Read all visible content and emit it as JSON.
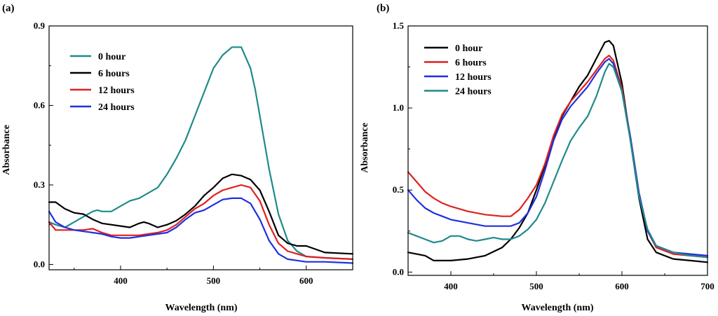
{
  "chart_data": [
    {
      "type": "line",
      "panel_label": "(a)",
      "xlabel": "Wavelength (nm)",
      "ylabel": "Absorbance",
      "xlim": [
        323,
        650
      ],
      "ylim": [
        -0.02,
        0.9
      ],
      "xticks": [
        400,
        500,
        600
      ],
      "yticks": [
        0.0,
        0.3,
        0.6,
        0.9
      ],
      "ytick_labels": [
        "0.0",
        "0.3",
        "0.6",
        "0.9"
      ],
      "legend_position": "top-left",
      "series": [
        {
          "name": "0 hour",
          "color": "#1f8a8a",
          "x": [
            323,
            330,
            340,
            350,
            360,
            370,
            375,
            380,
            390,
            400,
            410,
            420,
            430,
            440,
            450,
            460,
            470,
            480,
            490,
            500,
            510,
            520,
            530,
            540,
            545,
            550,
            555,
            560,
            570,
            580,
            590,
            600,
            620,
            650
          ],
          "y": [
            0.16,
            0.15,
            0.14,
            0.16,
            0.18,
            0.2,
            0.205,
            0.2,
            0.2,
            0.22,
            0.24,
            0.25,
            0.27,
            0.29,
            0.34,
            0.4,
            0.47,
            0.56,
            0.65,
            0.74,
            0.79,
            0.82,
            0.82,
            0.74,
            0.66,
            0.56,
            0.46,
            0.36,
            0.19,
            0.09,
            0.05,
            0.03,
            0.025,
            0.02
          ]
        },
        {
          "name": "6 hours",
          "color": "#000000",
          "x": [
            323,
            330,
            340,
            350,
            360,
            370,
            380,
            390,
            400,
            410,
            420,
            425,
            430,
            440,
            450,
            460,
            470,
            480,
            490,
            500,
            510,
            520,
            530,
            540,
            550,
            560,
            570,
            580,
            590,
            600,
            620,
            650
          ],
          "y": [
            0.235,
            0.235,
            0.21,
            0.195,
            0.19,
            0.17,
            0.155,
            0.15,
            0.145,
            0.14,
            0.155,
            0.16,
            0.155,
            0.14,
            0.15,
            0.165,
            0.19,
            0.22,
            0.26,
            0.29,
            0.325,
            0.34,
            0.335,
            0.32,
            0.28,
            0.2,
            0.11,
            0.08,
            0.07,
            0.07,
            0.045,
            0.04
          ]
        },
        {
          "name": "12 hours",
          "color": "#e02020",
          "x": [
            323,
            330,
            340,
            350,
            360,
            370,
            380,
            390,
            400,
            410,
            420,
            430,
            440,
            450,
            460,
            470,
            480,
            490,
            500,
            510,
            520,
            530,
            540,
            550,
            560,
            570,
            580,
            590,
            600,
            620,
            650
          ],
          "y": [
            0.16,
            0.13,
            0.13,
            0.13,
            0.13,
            0.135,
            0.12,
            0.11,
            0.11,
            0.11,
            0.11,
            0.115,
            0.12,
            0.13,
            0.15,
            0.18,
            0.21,
            0.23,
            0.26,
            0.28,
            0.29,
            0.3,
            0.29,
            0.24,
            0.15,
            0.08,
            0.05,
            0.04,
            0.03,
            0.025,
            0.02
          ]
        },
        {
          "name": "24 hours",
          "color": "#1f2fe0",
          "x": [
            323,
            330,
            340,
            350,
            360,
            370,
            380,
            390,
            400,
            410,
            420,
            430,
            440,
            450,
            460,
            470,
            480,
            490,
            500,
            510,
            520,
            530,
            540,
            550,
            560,
            570,
            580,
            590,
            600,
            620,
            650
          ],
          "y": [
            0.2,
            0.16,
            0.14,
            0.13,
            0.125,
            0.12,
            0.115,
            0.105,
            0.1,
            0.1,
            0.105,
            0.11,
            0.115,
            0.12,
            0.14,
            0.17,
            0.195,
            0.205,
            0.225,
            0.245,
            0.25,
            0.25,
            0.23,
            0.17,
            0.09,
            0.04,
            0.02,
            0.015,
            0.01,
            0.01,
            0.005
          ]
        }
      ]
    },
    {
      "type": "line",
      "panel_label": "(b)",
      "xlabel": "Wavelength (nm)",
      "ylabel": "Absorbance",
      "xlim": [
        350,
        700
      ],
      "ylim": [
        -0.02,
        1.5
      ],
      "xticks": [
        400,
        500,
        600,
        700
      ],
      "yticks": [
        0.0,
        0.5,
        1.0,
        1.5
      ],
      "ytick_labels": [
        "0.0",
        "0.5",
        "1.0",
        "1.5"
      ],
      "legend_position": "top-left",
      "series": [
        {
          "name": "0 hour",
          "color": "#000000",
          "x": [
            350,
            360,
            370,
            380,
            390,
            400,
            420,
            440,
            460,
            470,
            480,
            490,
            500,
            510,
            520,
            530,
            540,
            550,
            560,
            570,
            580,
            585,
            590,
            600,
            610,
            620,
            630,
            640,
            660,
            680,
            700
          ],
          "y": [
            0.12,
            0.11,
            0.1,
            0.07,
            0.07,
            0.07,
            0.08,
            0.1,
            0.15,
            0.2,
            0.27,
            0.36,
            0.5,
            0.65,
            0.82,
            0.95,
            1.04,
            1.13,
            1.2,
            1.3,
            1.4,
            1.41,
            1.38,
            1.15,
            0.8,
            0.45,
            0.2,
            0.12,
            0.08,
            0.07,
            0.06
          ]
        },
        {
          "name": "6 hours",
          "color": "#e02020",
          "x": [
            350,
            360,
            370,
            380,
            390,
            400,
            420,
            440,
            460,
            470,
            480,
            490,
            500,
            510,
            520,
            530,
            540,
            550,
            560,
            570,
            580,
            585,
            590,
            600,
            610,
            620,
            630,
            640,
            660,
            680,
            700
          ],
          "y": [
            0.61,
            0.55,
            0.49,
            0.45,
            0.42,
            0.4,
            0.37,
            0.35,
            0.34,
            0.34,
            0.38,
            0.45,
            0.53,
            0.66,
            0.83,
            0.96,
            1.04,
            1.1,
            1.16,
            1.23,
            1.3,
            1.32,
            1.29,
            1.12,
            0.82,
            0.48,
            0.25,
            0.15,
            0.11,
            0.1,
            0.09
          ]
        },
        {
          "name": "12 hours",
          "color": "#1f2fe0",
          "x": [
            350,
            360,
            370,
            380,
            390,
            400,
            420,
            440,
            460,
            470,
            480,
            490,
            500,
            510,
            520,
            530,
            540,
            550,
            560,
            570,
            580,
            585,
            590,
            600,
            610,
            620,
            630,
            640,
            660,
            680,
            700
          ],
          "y": [
            0.5,
            0.44,
            0.39,
            0.36,
            0.34,
            0.32,
            0.3,
            0.28,
            0.28,
            0.28,
            0.3,
            0.36,
            0.46,
            0.62,
            0.8,
            0.93,
            1.01,
            1.07,
            1.13,
            1.21,
            1.28,
            1.3,
            1.27,
            1.1,
            0.82,
            0.48,
            0.25,
            0.16,
            0.12,
            0.11,
            0.1
          ]
        },
        {
          "name": "24 hours",
          "color": "#1f8a8a",
          "x": [
            350,
            360,
            370,
            380,
            390,
            400,
            410,
            420,
            430,
            440,
            450,
            460,
            470,
            480,
            490,
            500,
            510,
            520,
            530,
            540,
            550,
            560,
            570,
            580,
            585,
            590,
            600,
            610,
            620,
            630,
            640,
            660,
            680,
            700
          ],
          "y": [
            0.24,
            0.22,
            0.2,
            0.18,
            0.19,
            0.22,
            0.22,
            0.2,
            0.19,
            0.2,
            0.21,
            0.2,
            0.2,
            0.22,
            0.26,
            0.32,
            0.42,
            0.55,
            0.68,
            0.8,
            0.88,
            0.95,
            1.07,
            1.22,
            1.27,
            1.25,
            1.1,
            0.8,
            0.46,
            0.26,
            0.16,
            0.12,
            0.1,
            0.09
          ]
        }
      ]
    }
  ]
}
